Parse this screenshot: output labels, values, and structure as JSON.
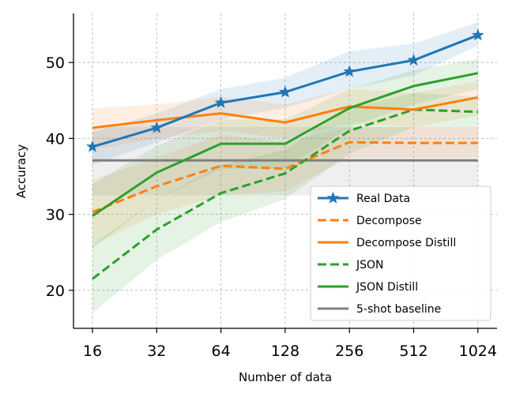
{
  "chart_data": {
    "type": "line",
    "title": "",
    "xlabel": "Number of data",
    "ylabel": "Accuracy",
    "categories": [
      "16",
      "32",
      "64",
      "128",
      "256",
      "512",
      "1024"
    ],
    "yticks": [
      "20",
      "30",
      "40",
      "50"
    ],
    "ylim": [
      15,
      56.5
    ],
    "grid": true,
    "legend_position": "lower-right",
    "series": [
      {
        "name": "Real Data",
        "color": "#1f77b4",
        "style": "solid",
        "marker": "star",
        "values": [
          38.9,
          41.4,
          44.7,
          46.1,
          48.8,
          50.3,
          53.6
        ],
        "band_low": [
          36.5,
          39.5,
          42.5,
          44.0,
          46.5,
          48.3,
          52.2
        ],
        "band_high": [
          40.8,
          43.3,
          46.5,
          48.0,
          51.5,
          52.5,
          55.3
        ]
      },
      {
        "name": "Decompose",
        "color": "#ff7f0e",
        "style": "dashed",
        "marker": "none",
        "values": [
          30.3,
          33.7,
          36.4,
          36.0,
          39.5,
          39.4,
          39.4
        ],
        "band_low": [
          26.0,
          30.0,
          32.5,
          33.0,
          37.5,
          37.5,
          37.5
        ],
        "band_high": [
          34.5,
          37.5,
          40.5,
          39.5,
          41.5,
          41.5,
          41.5
        ]
      },
      {
        "name": "Decompose Distill",
        "color": "#ff7f0e",
        "style": "solid",
        "marker": "none",
        "values": [
          41.4,
          42.4,
          43.3,
          42.1,
          44.2,
          43.8,
          45.4
        ],
        "band_low": [
          38.5,
          40.0,
          41.0,
          40.0,
          42.0,
          41.5,
          43.0
        ],
        "band_high": [
          44.0,
          44.5,
          45.5,
          44.5,
          46.5,
          46.0,
          47.5
        ]
      },
      {
        "name": "JSON",
        "color": "#2ca02c",
        "style": "dashed",
        "marker": "none",
        "values": [
          21.5,
          28.0,
          32.8,
          35.4,
          41.0,
          43.8,
          43.5
        ],
        "band_low": [
          17.0,
          24.0,
          29.0,
          32.0,
          38.0,
          41.5,
          41.5
        ],
        "band_high": [
          26.0,
          32.0,
          36.5,
          38.5,
          44.0,
          46.0,
          45.5
        ]
      },
      {
        "name": "JSON Distill",
        "color": "#2ca02c",
        "style": "solid",
        "marker": "none",
        "values": [
          29.8,
          35.5,
          39.3,
          39.3,
          44.0,
          46.9,
          48.6
        ],
        "band_low": [
          25.5,
          32.0,
          36.0,
          36.0,
          41.5,
          44.5,
          46.5
        ],
        "band_high": [
          34.0,
          39.0,
          42.5,
          42.5,
          46.5,
          49.0,
          50.5
        ]
      },
      {
        "name": "5-shot baseline",
        "color": "#7f7f7f",
        "style": "solid",
        "marker": "none",
        "values": [
          37.1,
          37.1,
          37.1,
          37.1,
          37.1,
          37.1,
          37.1
        ],
        "band_low": [
          32.5,
          32.5,
          32.5,
          32.5,
          32.5,
          32.5,
          32.5
        ],
        "band_high": [
          41.5,
          41.5,
          41.5,
          41.5,
          41.5,
          41.5,
          41.5
        ]
      }
    ]
  }
}
